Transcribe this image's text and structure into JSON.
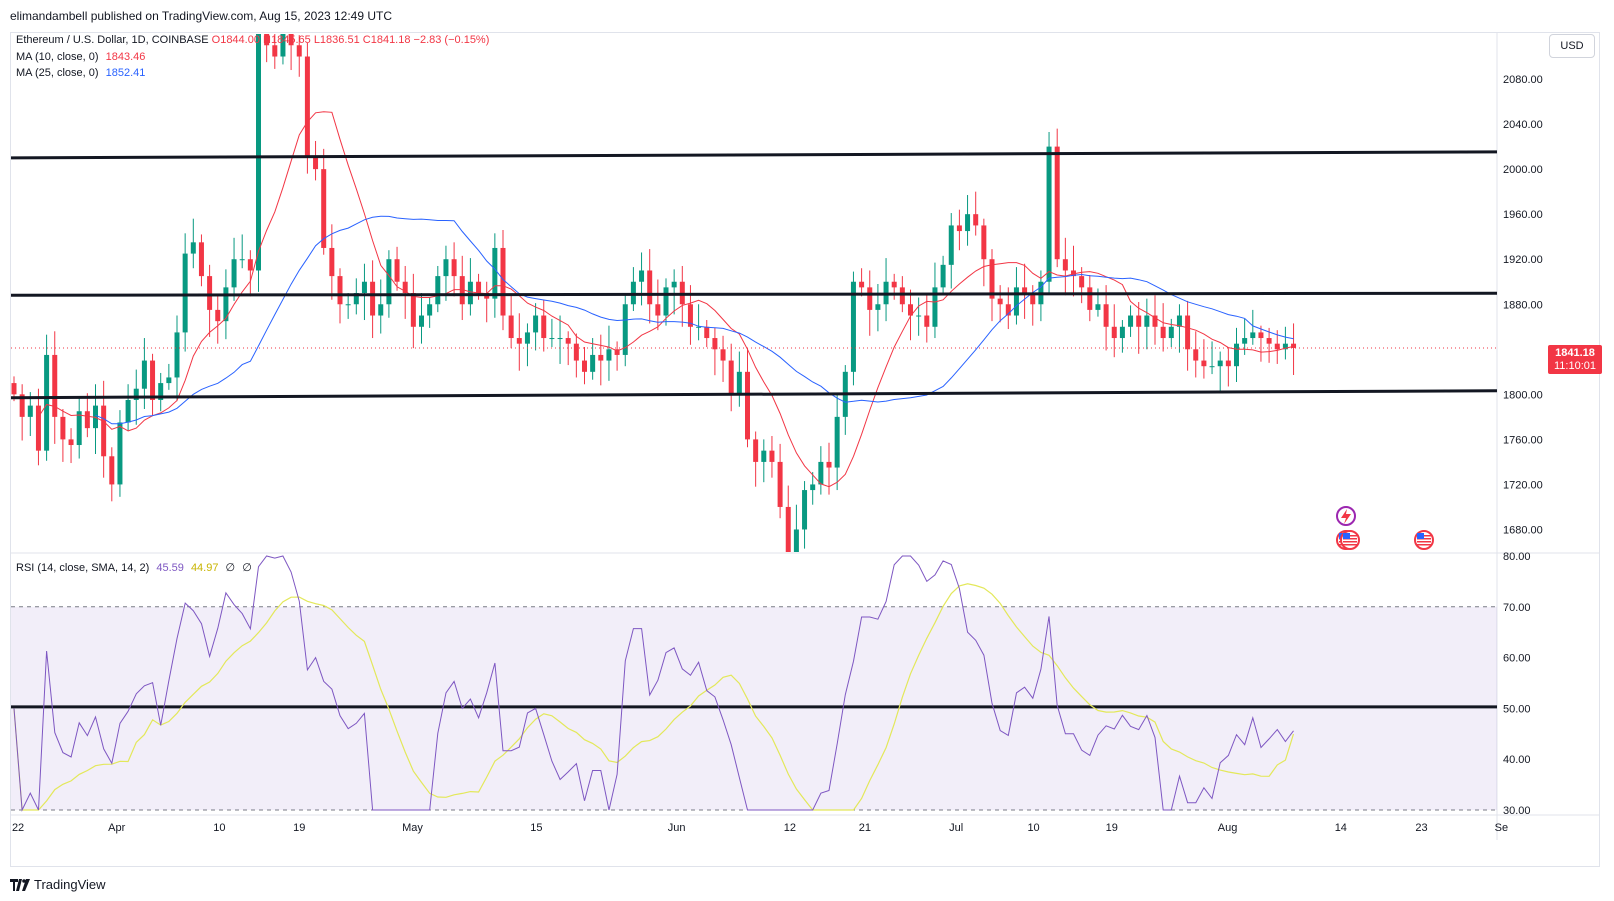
{
  "header": {
    "publisher_line": "elimandambell published on TradingView.com, Aug 15, 2023 12:49 UTC"
  },
  "legend": {
    "symbol": "Ethereum / U.S. Dollar, 1D, COINBASE",
    "ohlc": {
      "o": "O1844.00",
      "h": "H1845.65",
      "l": "L1836.51",
      "c": "C1841.18",
      "chg": "−2.83 (−0.15%)"
    },
    "ma10_label": "MA (10, close, 0)",
    "ma10_value": "1843.46",
    "ma25_label": "MA (25, close, 0)",
    "ma25_value": "1852.41",
    "rsi_label": "RSI (14, close, SMA, 14, 2)",
    "rsi_value": "45.59",
    "rsi_sma_value": "44.97",
    "rsi_extra1": "∅",
    "rsi_extra2": "∅"
  },
  "currency_button": "USD",
  "last_price": {
    "price": "1841.18",
    "countdown": "11:10:01"
  },
  "footer": {
    "brand": "TradingView"
  },
  "colors": {
    "up": "#089981",
    "down": "#f23645",
    "ma10": "#f23645",
    "ma25": "#2962ff",
    "rsi": "#7e57c2",
    "rsi_sma": "#e3e85a",
    "levels": "#131722"
  },
  "chart_data": [
    {
      "type": "candlestick",
      "title": "Ethereum / U.S. Dollar, 1D, COINBASE",
      "price_axis_ticks": [
        "2080.00",
        "2040.00",
        "2000.00",
        "1960.00",
        "1920.00",
        "1880.00",
        "1841.18",
        "1800.00",
        "1760.00",
        "1720.00",
        "1680.00"
      ],
      "ylim": [
        1660,
        2120
      ],
      "time_axis_ticks": [
        "22",
        "Apr",
        "10",
        "19",
        "May",
        "15",
        "Jun",
        "12",
        "21",
        "Jul",
        "10",
        "19",
        "Aug",
        "14",
        "23",
        "Se"
      ],
      "close": [
        1800,
        1780,
        1790,
        1750,
        1835,
        1780,
        1760,
        1755,
        1785,
        1770,
        1790,
        1745,
        1720,
        1775,
        1795,
        1805,
        1830,
        1795,
        1810,
        1815,
        1855,
        1925,
        1935,
        1905,
        1875,
        1865,
        1895,
        1920,
        1920,
        1910,
        2120,
        2110,
        2100,
        2120,
        2110,
        2100,
        2010,
        2000,
        1930,
        1905,
        1880,
        1880,
        1890,
        1900,
        1870,
        1880,
        1920,
        1900,
        1890,
        1860,
        1870,
        1880,
        1905,
        1920,
        1905,
        1880,
        1900,
        1890,
        1885,
        1930,
        1870,
        1850,
        1845,
        1855,
        1870,
        1850,
        1850,
        1850,
        1845,
        1830,
        1820,
        1835,
        1830,
        1840,
        1835,
        1880,
        1900,
        1910,
        1880,
        1870,
        1895,
        1900,
        1880,
        1860,
        1860,
        1850,
        1840,
        1830,
        1800,
        1820,
        1760,
        1740,
        1750,
        1740,
        1700,
        1660,
        1680,
        1715,
        1720,
        1740,
        1735,
        1780,
        1820,
        1900,
        1895,
        1875,
        1880,
        1900,
        1895,
        1880,
        1870,
        1870,
        1860,
        1895,
        1915,
        1950,
        1945,
        1960,
        1950,
        1920,
        1885,
        1880,
        1870,
        1895,
        1890,
        1880,
        1900,
        2020,
        1920,
        1910,
        1905,
        1895,
        1875,
        1880,
        1860,
        1850,
        1860,
        1870,
        1860,
        1870,
        1860,
        1850,
        1860,
        1870,
        1840,
        1830,
        1825,
        1825,
        1830,
        1825,
        1845,
        1850,
        1855,
        1850,
        1845,
        1840,
        1845,
        1841.18
      ],
      "ma10_value": 1843.46,
      "ma25_value": 1852.41,
      "support_resistance_levels": [
        2010,
        1888,
        1797
      ]
    },
    {
      "type": "line",
      "title": "RSI (14, close, SMA, 14, 2)",
      "axis_ticks": [
        "80.00",
        "70.00",
        "60.00",
        "50.00",
        "40.00",
        "30.00"
      ],
      "ylim": [
        30,
        80
      ],
      "band": [
        30,
        70
      ],
      "horizontal_line": 50.3,
      "rsi_last": 45.59,
      "rsi_sma_last": 44.97
    }
  ]
}
